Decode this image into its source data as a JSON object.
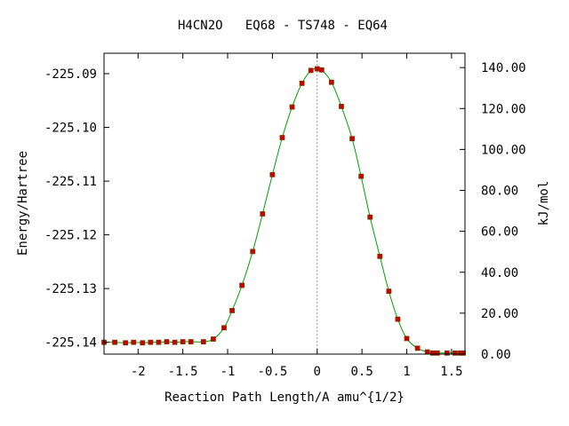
{
  "chart_data": {
    "type": "scatter",
    "title": "H4CN2O   EQ68 - TS748 - EQ64",
    "xlabel": "Reaction Path Length/A amu^{1/2}",
    "ylabel": "Energy/Hartree",
    "y2label": "kJ/mol",
    "xlim": [
      -2.38,
      1.65
    ],
    "ylim": [
      -225.1422,
      -225.0862
    ],
    "y2lim": [
      0.0,
      147.0
    ],
    "x_ticks": [
      "-2",
      "-1.5",
      "-1",
      "-0.5",
      "0",
      "0.5",
      "1",
      "1.5"
    ],
    "x_tick_values": [
      -2,
      -1.5,
      -1,
      -0.5,
      0,
      0.5,
      1,
      1.5
    ],
    "y_ticks": [
      "-225.09",
      "-225.10",
      "-225.11",
      "-225.12",
      "-225.13",
      "-225.14"
    ],
    "y_tick_values": [
      -225.09,
      -225.1,
      -225.11,
      -225.12,
      -225.13,
      -225.14
    ],
    "y2_ticks": [
      "140.00",
      "120.00",
      "100.00",
      "80.00",
      "60.00",
      "40.00",
      "20.00",
      "0.00"
    ],
    "y2_tick_values": [
      140,
      120,
      100,
      80,
      60,
      40,
      20,
      0
    ],
    "ts_marker_x": 0,
    "colors": {
      "curve": "#00a000",
      "points": "#c80000"
    },
    "series": [
      {
        "points": [
          [
            -2.38,
            -225.14
          ],
          [
            -2.26,
            -225.14
          ],
          [
            -2.14,
            -225.1401
          ],
          [
            -2.05,
            -225.14
          ],
          [
            -1.95,
            -225.1401
          ],
          [
            -1.86,
            -225.14
          ],
          [
            -1.77,
            -225.14
          ],
          [
            -1.68,
            -225.1399
          ],
          [
            -1.59,
            -225.14
          ],
          [
            -1.5,
            -225.1399
          ],
          [
            -1.41,
            -225.1399
          ],
          [
            -1.27,
            -225.1399
          ],
          [
            -1.16,
            -225.1394
          ],
          [
            -1.04,
            -225.1373
          ],
          [
            -0.95,
            -225.1341
          ],
          [
            -0.84,
            -225.1294
          ],
          [
            -0.72,
            -225.1231
          ],
          [
            -0.61,
            -225.1161
          ],
          [
            -0.5,
            -225.1088
          ],
          [
            -0.39,
            -225.1019
          ],
          [
            -0.28,
            -225.0962
          ],
          [
            -0.17,
            -225.0918
          ],
          [
            -0.07,
            -225.0894
          ],
          [
            0.0,
            -225.0891
          ],
          [
            0.05,
            -225.0893
          ],
          [
            0.16,
            -225.0916
          ],
          [
            0.27,
            -225.0961
          ],
          [
            0.39,
            -225.1021
          ],
          [
            0.49,
            -225.1091
          ],
          [
            0.59,
            -225.1167
          ],
          [
            0.7,
            -225.124
          ],
          [
            0.8,
            -225.1305
          ],
          [
            0.9,
            -225.1357
          ],
          [
            1.0,
            -225.1393
          ],
          [
            1.12,
            -225.1411
          ],
          [
            1.23,
            -225.1418
          ],
          [
            1.29,
            -225.142
          ],
          [
            1.34,
            -225.142
          ],
          [
            1.45,
            -225.142
          ],
          [
            1.54,
            -225.142
          ],
          [
            1.6,
            -225.142
          ],
          [
            1.63,
            -225.142
          ]
        ]
      }
    ]
  }
}
